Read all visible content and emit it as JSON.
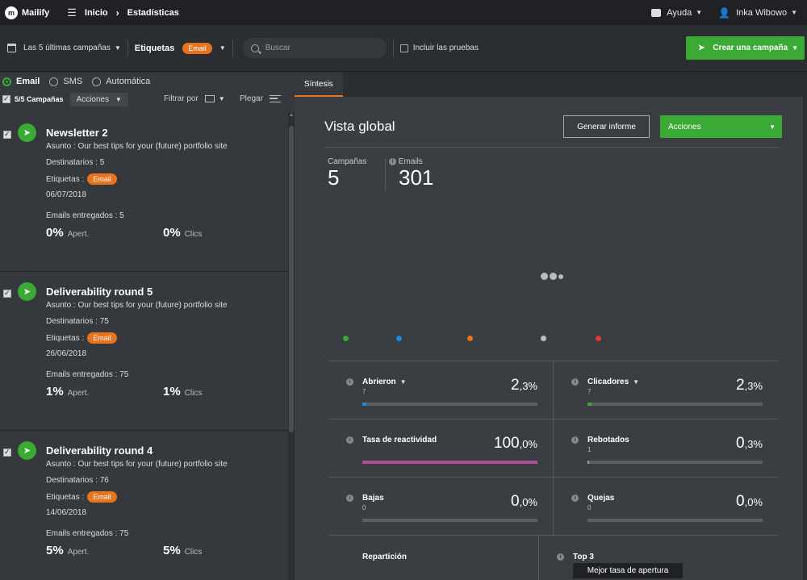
{
  "header": {
    "brand": "Mailify",
    "breadcrumb": [
      "Inicio",
      "Estadísticas"
    ],
    "help_label": "Ayuda",
    "user_name": "Inka Wibowo"
  },
  "toolbar": {
    "period_label": "Las 5 últimas campañas",
    "tags_label": "Etiquetas",
    "tag_pill": "Email",
    "search_placeholder": "Buscar",
    "include_tests_label": "Incluir las pruebas",
    "create_label": "Crear una campaña"
  },
  "left": {
    "channels": [
      {
        "label": "Email",
        "selected": true
      },
      {
        "label": "SMS",
        "selected": false
      },
      {
        "label": "Automática",
        "selected": false
      }
    ],
    "count_label": "5/5 Campañas",
    "actions_label": "Acciones",
    "filter_label": "Filtrar por",
    "fold_label": "Plegar",
    "campaigns": [
      {
        "title": "Newsletter 2",
        "subject": "Asunto : Our best tips for your (future) portfolio site",
        "recipients": "Destinatarios : 5",
        "tags_label": "Etiquetas :",
        "tag": "Email",
        "date": "06/07/2018",
        "delivered": "Emails entregados : 5",
        "open_pct": "0%",
        "open_label": "Apert.",
        "click_pct": "0%",
        "click_label": "Clics"
      },
      {
        "title": "Deliverability round 5",
        "subject": "Asunto : Our best tips for your (future) portfolio site",
        "recipients": "Destinatarios : 75",
        "tags_label": "Etiquetas :",
        "tag": "Email",
        "date": "26/06/2018",
        "delivered": "Emails entregados : 75",
        "open_pct": "1%",
        "open_label": "Apert.",
        "click_pct": "1%",
        "click_label": "Clics"
      },
      {
        "title": "Deliverability round 4",
        "subject": "Asunto : Our best tips for your (future) portfolio site",
        "recipients": "Destinatarios : 76",
        "tags_label": "Etiquetas :",
        "tag": "Email",
        "date": "14/06/2018",
        "delivered": "Emails entregados : 75",
        "open_pct": "5%",
        "open_label": "Apert.",
        "click_pct": "5%",
        "click_label": "Clics"
      }
    ]
  },
  "right": {
    "tab": "Síntesis",
    "title": "Vista global",
    "report_button": "Generar informe",
    "actions_button": "Acciones",
    "kpis": [
      {
        "label": "Campañas",
        "value": "5"
      },
      {
        "label": "Emails",
        "value": "301"
      }
    ],
    "legend_colors": [
      "#3aaa35",
      "#1e88e5",
      "#e8731c",
      "#bdbdbd",
      "#e53935"
    ],
    "metrics": [
      {
        "name": "Abrieron",
        "count": "7",
        "int": "2",
        "dec": ",3%",
        "fill": 0.023,
        "color": "#1e88e5"
      },
      {
        "name": "Clicadores",
        "count": "7",
        "int": "2",
        "dec": ",3%",
        "fill": 0.023,
        "color": "#3aaa35"
      },
      {
        "name": "Tasa de reactividad",
        "count": "",
        "int": "100",
        "dec": ",0%",
        "fill": 1.0,
        "color": "#b44c9e"
      },
      {
        "name": "Rebotados",
        "count": "1",
        "int": "0",
        "dec": ",3%",
        "fill": 0.003,
        "color": "#9e9e9e"
      },
      {
        "name": "Bajas",
        "count": "0",
        "int": "0",
        "dec": ",0%",
        "fill": 0,
        "color": "#9e9e9e"
      },
      {
        "name": "Quejas",
        "count": "0",
        "int": "0",
        "dec": ",0%",
        "fill": 0,
        "color": "#9e9e9e"
      }
    ],
    "repartition_label": "Repartición",
    "top3_label": "Top 3",
    "tooltip": "Mejor tasa de apertura"
  }
}
